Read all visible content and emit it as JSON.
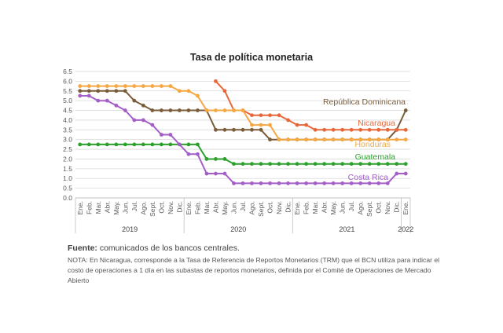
{
  "chart_data": {
    "type": "line",
    "title": "Tasa de política monetaria",
    "ylim": [
      0,
      6.5
    ],
    "yticks": [
      "0.0",
      "0.5",
      "1.0",
      "1.5",
      "2.0",
      "2.5",
      "3.0",
      "3.5",
      "4.0",
      "4.5",
      "5.0",
      "5.5",
      "6.0",
      "6.5"
    ],
    "categories": [
      "Ene.",
      "Feb.",
      "Mar.",
      "Abr.",
      "May.",
      "Jun.",
      "Jul.",
      "Ago.",
      "Sept.",
      "Oct.",
      "Nov.",
      "Dic.",
      "Ene.",
      "Feb.",
      "Mar.",
      "Abr.",
      "May.",
      "Jun.",
      "Jul.",
      "Ago.",
      "Sept.",
      "Oct.",
      "Nov.",
      "Dic.",
      "Ene.",
      "Feb.",
      "Mar.",
      "Abr.",
      "May.",
      "Jun.",
      "Jul.",
      "Ago.",
      "Sept.",
      "Oct.",
      "Nov.",
      "Dic.",
      "Ene."
    ],
    "years": [
      {
        "label": "2019",
        "start": 0,
        "end": 11
      },
      {
        "label": "2020",
        "start": 12,
        "end": 23
      },
      {
        "label": "2021",
        "start": 24,
        "end": 35
      },
      {
        "label": "2022",
        "start": 36,
        "end": 36
      }
    ],
    "grid": true,
    "series": [
      {
        "name": "República Dominicana",
        "color": "#7a5c3a",
        "values": [
          5.5,
          5.5,
          5.5,
          5.5,
          5.5,
          5.5,
          5.0,
          4.75,
          4.5,
          4.5,
          4.5,
          4.5,
          4.5,
          4.5,
          4.5,
          3.5,
          3.5,
          3.5,
          3.5,
          3.5,
          3.5,
          3.0,
          3.0,
          3.0,
          3.0,
          3.0,
          3.0,
          3.0,
          3.0,
          3.0,
          3.0,
          3.0,
          3.0,
          3.0,
          3.0,
          3.5,
          4.5
        ]
      },
      {
        "name": "Nicaragua",
        "color": "#e8673a",
        "values": [
          null,
          null,
          null,
          null,
          null,
          null,
          null,
          null,
          null,
          null,
          null,
          null,
          null,
          null,
          null,
          6.0,
          5.5,
          4.5,
          4.5,
          4.25,
          4.25,
          4.25,
          4.25,
          4.0,
          3.75,
          3.75,
          3.5,
          3.5,
          3.5,
          3.5,
          3.5,
          3.5,
          3.5,
          3.5,
          3.5,
          3.5,
          3.5
        ]
      },
      {
        "name": "Honduras",
        "color": "#f5a742",
        "values": [
          5.75,
          5.75,
          5.75,
          5.75,
          5.75,
          5.75,
          5.75,
          5.75,
          5.75,
          5.75,
          5.75,
          5.5,
          5.5,
          5.25,
          4.5,
          4.5,
          4.5,
          4.5,
          4.5,
          3.75,
          3.75,
          3.75,
          3.0,
          3.0,
          3.0,
          3.0,
          3.0,
          3.0,
          3.0,
          3.0,
          3.0,
          3.0,
          3.0,
          3.0,
          3.0,
          3.0,
          3.0
        ]
      },
      {
        "name": "Guatemala",
        "color": "#2ca02c",
        "values": [
          2.75,
          2.75,
          2.75,
          2.75,
          2.75,
          2.75,
          2.75,
          2.75,
          2.75,
          2.75,
          2.75,
          2.75,
          2.75,
          2.75,
          2.0,
          2.0,
          2.0,
          1.75,
          1.75,
          1.75,
          1.75,
          1.75,
          1.75,
          1.75,
          1.75,
          1.75,
          1.75,
          1.75,
          1.75,
          1.75,
          1.75,
          1.75,
          1.75,
          1.75,
          1.75,
          1.75,
          1.75
        ]
      },
      {
        "name": "Costa Rica",
        "color": "#a45ec8",
        "values": [
          5.25,
          5.25,
          5.0,
          5.0,
          4.75,
          4.5,
          4.0,
          4.0,
          3.75,
          3.25,
          3.25,
          2.75,
          2.25,
          2.25,
          1.25,
          1.25,
          1.25,
          0.75,
          0.75,
          0.75,
          0.75,
          0.75,
          0.75,
          0.75,
          0.75,
          0.75,
          0.75,
          0.75,
          0.75,
          0.75,
          0.75,
          0.75,
          0.75,
          0.75,
          0.75,
          1.25,
          1.25
        ]
      }
    ]
  },
  "source": {
    "label": "Fuente:",
    "text": " comunicados de los bancos centrales."
  },
  "note": "NOTA: En Nicaragua, corresponde a la Tasa de Referencia de Reportos Monetarios (TRM) que el BCN utiliza para indicar el costo de operaciones a 1 día en las subastas de reportos monetarios, definida por el Comité de Operaciones de Mercado Abierto"
}
